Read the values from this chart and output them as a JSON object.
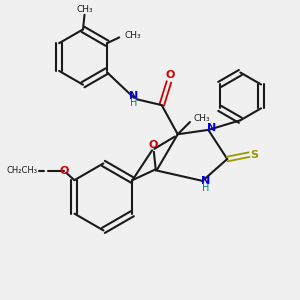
{
  "bg_color": "#f0f0f0",
  "bond_color": "#1a1a1a",
  "oxygen_color": "#cc0000",
  "nitrogen_color": "#0000cc",
  "sulfur_color": "#999900",
  "nh_color": "#008080",
  "figsize": [
    3.0,
    3.0
  ],
  "dpi": 100,
  "xlim": [
    0,
    10
  ],
  "ylim": [
    0,
    10
  ]
}
